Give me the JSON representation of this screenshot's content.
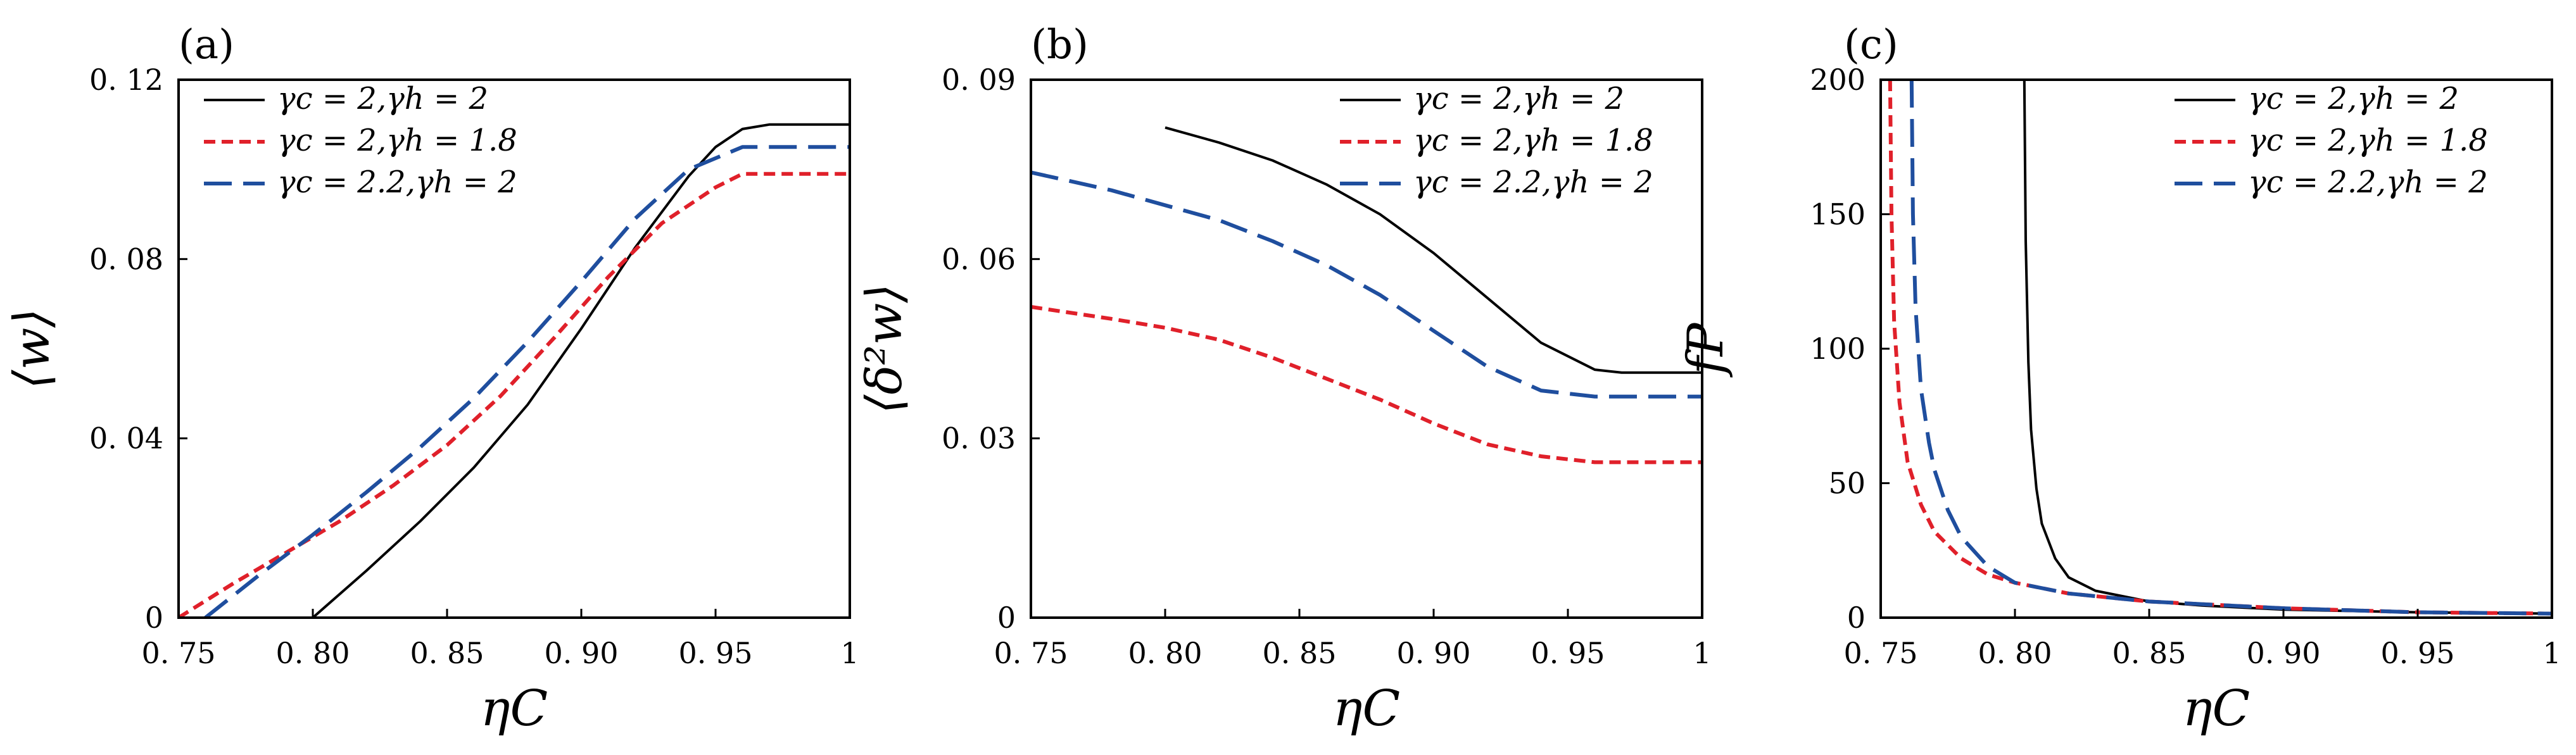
{
  "chart_data": [
    {
      "type": "line",
      "panel_label": "(a)",
      "xlabel": "ηC",
      "ylabel": "⟨w⟩",
      "xlim": [
        0.75,
        1.0
      ],
      "ylim": [
        0,
        0.12
      ],
      "xticks": [
        0.75,
        0.8,
        0.85,
        0.9,
        0.95,
        1.0
      ],
      "xtick_labels": [
        "0. 75",
        "0. 80",
        "0. 85",
        "0. 90",
        "0. 95",
        "1"
      ],
      "yticks": [
        0,
        0.04,
        0.08,
        0.12
      ],
      "ytick_labels": [
        "0",
        "0. 04",
        "0. 08",
        "0. 12"
      ],
      "legend_position": "top-left",
      "series": [
        {
          "name": "γc = 2,γh = 2",
          "color": "#000000",
          "dash": "solid",
          "x": [
            0.8,
            0.82,
            0.84,
            0.86,
            0.88,
            0.9,
            0.92,
            0.94,
            0.95,
            0.96,
            0.97,
            1.0
          ],
          "y": [
            0.0,
            0.0105,
            0.0215,
            0.0335,
            0.0475,
            0.0645,
            0.0825,
            0.0985,
            0.105,
            0.109,
            0.11,
            0.11
          ]
        },
        {
          "name": "γc = 2,γh = 1.8",
          "color": "#e0202a",
          "dash": "short",
          "x": [
            0.75,
            0.77,
            0.79,
            0.81,
            0.83,
            0.85,
            0.87,
            0.89,
            0.91,
            0.93,
            0.95,
            0.96,
            1.0
          ],
          "y": [
            0.0,
            0.0075,
            0.0145,
            0.0215,
            0.0295,
            0.0385,
            0.0495,
            0.0625,
            0.076,
            0.088,
            0.096,
            0.099,
            0.099
          ]
        },
        {
          "name": "γc = 2.2,γh = 2",
          "color": "#1f4e9e",
          "dash": "long",
          "x": [
            0.76,
            0.78,
            0.8,
            0.82,
            0.84,
            0.86,
            0.88,
            0.9,
            0.92,
            0.94,
            0.96,
            1.0
          ],
          "y": [
            0.0,
            0.0095,
            0.0185,
            0.028,
            0.038,
            0.049,
            0.0615,
            0.075,
            0.089,
            0.1,
            0.105,
            0.105
          ]
        }
      ]
    },
    {
      "type": "line",
      "panel_label": "(b)",
      "xlabel": "ηC",
      "ylabel": "⟨δ²w⟩",
      "xlim": [
        0.75,
        1.0
      ],
      "ylim": [
        0,
        0.09
      ],
      "xticks": [
        0.75,
        0.8,
        0.85,
        0.9,
        0.95,
        1.0
      ],
      "xtick_labels": [
        "0. 75",
        "0. 80",
        "0. 85",
        "0. 90",
        "0. 95",
        "1"
      ],
      "yticks": [
        0,
        0.03,
        0.06,
        0.09
      ],
      "ytick_labels": [
        "0",
        "0. 03",
        "0. 06",
        "0. 09"
      ],
      "legend_position": "top-right",
      "series": [
        {
          "name": "γc = 2,γh = 2",
          "color": "#000000",
          "dash": "solid",
          "x": [
            0.8,
            0.82,
            0.84,
            0.86,
            0.88,
            0.9,
            0.92,
            0.94,
            0.96,
            0.97,
            1.0
          ],
          "y": [
            0.082,
            0.0795,
            0.0765,
            0.0725,
            0.0675,
            0.061,
            0.0535,
            0.046,
            0.0415,
            0.041,
            0.041
          ]
        },
        {
          "name": "γc = 2,γh = 1.8",
          "color": "#e0202a",
          "dash": "short",
          "x": [
            0.75,
            0.78,
            0.8,
            0.82,
            0.84,
            0.86,
            0.88,
            0.9,
            0.92,
            0.94,
            0.96,
            0.97,
            1.0
          ],
          "y": [
            0.052,
            0.05,
            0.0485,
            0.0465,
            0.0435,
            0.04,
            0.0365,
            0.0325,
            0.029,
            0.027,
            0.026,
            0.026,
            0.026
          ]
        },
        {
          "name": "γc = 2.2,γh = 2",
          "color": "#1f4e9e",
          "dash": "long",
          "x": [
            0.75,
            0.78,
            0.8,
            0.82,
            0.84,
            0.86,
            0.88,
            0.9,
            0.92,
            0.94,
            0.96,
            0.97,
            1.0
          ],
          "y": [
            0.0745,
            0.0715,
            0.069,
            0.0665,
            0.063,
            0.059,
            0.054,
            0.048,
            0.042,
            0.038,
            0.037,
            0.037,
            0.037
          ]
        }
      ]
    },
    {
      "type": "line",
      "panel_label": "(c)",
      "xlabel": "ηC",
      "ylabel": "fP",
      "xlim": [
        0.75,
        1.0
      ],
      "ylim": [
        0,
        200
      ],
      "xticks": [
        0.75,
        0.8,
        0.85,
        0.9,
        0.95,
        1.0
      ],
      "xtick_labels": [
        "0. 75",
        "0. 80",
        "0. 85",
        "0. 90",
        "0. 95",
        "1"
      ],
      "yticks": [
        0,
        50,
        100,
        150,
        200
      ],
      "ytick_labels": [
        "0",
        "50",
        "100",
        "150",
        "200"
      ],
      "legend_position": "top-right",
      "series": [
        {
          "name": "γc = 2,γh = 2",
          "color": "#000000",
          "dash": "solid",
          "x": [
            0.8035,
            0.804,
            0.805,
            0.806,
            0.808,
            0.81,
            0.815,
            0.82,
            0.83,
            0.85,
            0.87,
            0.9,
            0.95,
            1.0
          ],
          "y": [
            200,
            140,
            95,
            70,
            48,
            35,
            22,
            15,
            10,
            6,
            4.5,
            3,
            2,
            1.5
          ]
        },
        {
          "name": "γc = 2,γh = 1.8",
          "color": "#e0202a",
          "dash": "short",
          "x": [
            0.7535,
            0.754,
            0.755,
            0.757,
            0.76,
            0.765,
            0.77,
            0.78,
            0.79,
            0.8,
            0.82,
            0.85,
            0.9,
            0.95,
            1.0
          ],
          "y": [
            200,
            150,
            110,
            80,
            58,
            42,
            32,
            22,
            16,
            13,
            9,
            6,
            3.5,
            2,
            1.5
          ]
        },
        {
          "name": "γc = 2.2,γh = 2",
          "color": "#1f4e9e",
          "dash": "long",
          "x": [
            0.7615,
            0.762,
            0.763,
            0.765,
            0.768,
            0.77,
            0.775,
            0.78,
            0.79,
            0.8,
            0.82,
            0.85,
            0.9,
            0.95,
            1.0
          ],
          "y": [
            200,
            150,
            115,
            85,
            65,
            55,
            40,
            30,
            19,
            13,
            9,
            6,
            3.5,
            2,
            1.5
          ]
        }
      ]
    }
  ]
}
